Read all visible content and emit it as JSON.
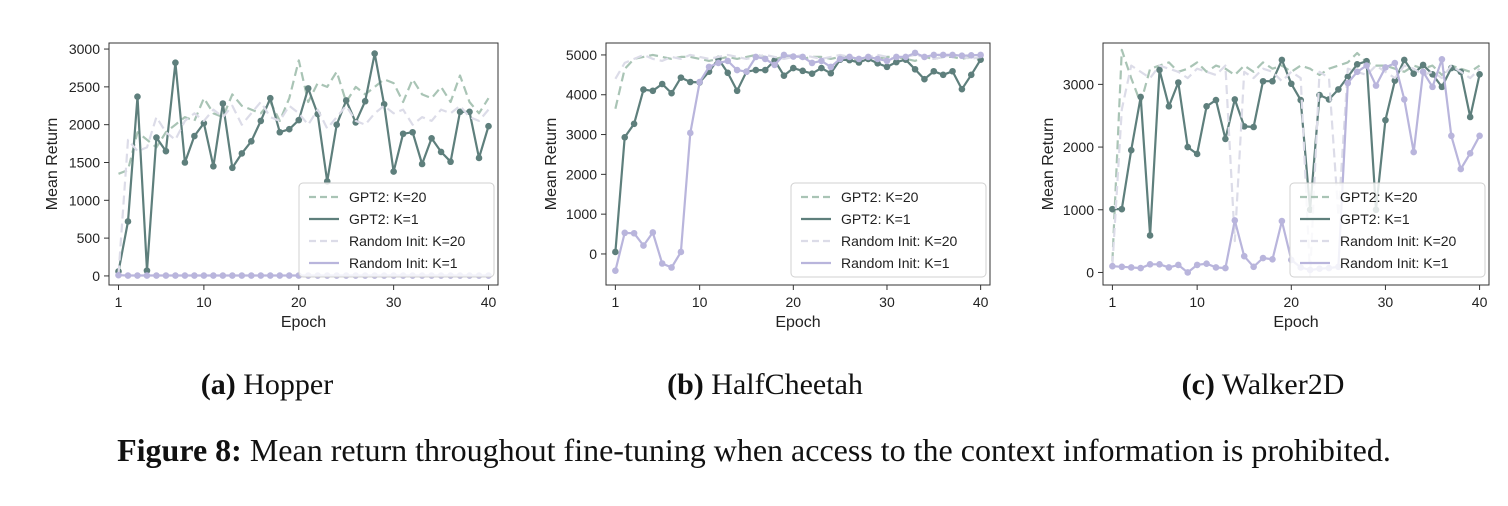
{
  "figure": {
    "label": "Figure 8:",
    "caption": "Mean return throughout fine-tuning when access to the context information is prohibited."
  },
  "colors": {
    "gpt2_k20": "#a9c4b5",
    "gpt2_k1": "#5e7f7c",
    "rand_k20": "#dcdce8",
    "rand_k1": "#b9b5dc"
  },
  "chart_data": [
    {
      "type": "line",
      "subfigure_label": "(a)",
      "subfigure_title": "Hopper",
      "xlabel": "Epoch",
      "ylabel": "Mean Return",
      "xlim": [
        0,
        41
      ],
      "ylim": [
        -120,
        3080
      ],
      "xticks": [
        1,
        10,
        20,
        30,
        40
      ],
      "yticks": [
        0,
        500,
        1000,
        1500,
        2000,
        2500,
        3000
      ],
      "legend_position": "lower-right",
      "x": [
        1,
        2,
        3,
        4,
        5,
        6,
        7,
        8,
        9,
        10,
        11,
        12,
        13,
        14,
        15,
        16,
        17,
        18,
        19,
        20,
        21,
        22,
        23,
        24,
        25,
        26,
        27,
        28,
        29,
        30,
        31,
        32,
        33,
        34,
        35,
        36,
        37,
        38,
        39,
        40
      ],
      "series": [
        {
          "name": "GPT2: K=20",
          "style": "dashed",
          "markers": false,
          "values": [
            1350,
            1400,
            1900,
            1800,
            1700,
            1900,
            2000,
            2100,
            2050,
            2350,
            2150,
            2100,
            2400,
            2250,
            2200,
            2150,
            2300,
            2050,
            2350,
            2850,
            2300,
            2550,
            2500,
            2700,
            2300,
            2500,
            2400,
            2500,
            2600,
            2550,
            2300,
            2600,
            2400,
            2350,
            2500,
            2300,
            2650,
            2300,
            2150,
            2350
          ]
        },
        {
          "name": "GPT2: K=1",
          "style": "solid",
          "markers": true,
          "values": [
            60,
            720,
            2370,
            70,
            1830,
            1650,
            2820,
            1500,
            1850,
            2020,
            1450,
            2280,
            1430,
            1620,
            1780,
            2050,
            2350,
            1900,
            1940,
            2060,
            2480,
            2140,
            1250,
            2000,
            2320,
            2030,
            2310,
            2940,
            2270,
            1380,
            1880,
            1900,
            1480,
            1820,
            1640,
            1510,
            2170,
            2170,
            1560,
            1980
          ]
        },
        {
          "name": "Random Init: K=20",
          "style": "dashed",
          "markers": false,
          "values": [
            20,
            1800,
            1650,
            1700,
            2100,
            1900,
            1800,
            2050,
            2150,
            2050,
            2200,
            2100,
            2250,
            2000,
            2150,
            2300,
            2100,
            2050,
            2250,
            2150,
            2000,
            2200,
            1950,
            2100,
            2250,
            2050,
            2000,
            2150,
            2250,
            2150,
            2200,
            2000,
            2100,
            2050,
            2200,
            2150,
            2250,
            2100,
            2050,
            2200
          ]
        },
        {
          "name": "Random Init: K=1",
          "style": "solid",
          "markers": true,
          "values": [
            10,
            5,
            5,
            5,
            5,
            5,
            5,
            5,
            5,
            5,
            5,
            5,
            5,
            5,
            5,
            5,
            5,
            5,
            5,
            5,
            5,
            5,
            5,
            5,
            5,
            5,
            5,
            5,
            5,
            5,
            5,
            5,
            5,
            5,
            5,
            5,
            5,
            5,
            5,
            5
          ]
        }
      ]
    },
    {
      "type": "line",
      "subfigure_label": "(b)",
      "subfigure_title": "HalfCheetah",
      "xlabel": "Epoch",
      "ylabel": "Mean Return",
      "xlim": [
        0,
        41
      ],
      "ylim": [
        -780,
        5300
      ],
      "xticks": [
        1,
        10,
        20,
        30,
        40
      ],
      "yticks": [
        0,
        1000,
        2000,
        3000,
        4000,
        5000
      ],
      "legend_position": "lower-right",
      "x": [
        1,
        2,
        3,
        4,
        5,
        6,
        7,
        8,
        9,
        10,
        11,
        12,
        13,
        14,
        15,
        16,
        17,
        18,
        19,
        20,
        21,
        22,
        23,
        24,
        25,
        26,
        27,
        28,
        29,
        30,
        31,
        32,
        33,
        34,
        35,
        36,
        37,
        38,
        39,
        40
      ],
      "series": [
        {
          "name": "GPT2: K=20",
          "style": "dashed",
          "markers": false,
          "values": [
            3650,
            4650,
            4900,
            4950,
            5000,
            4950,
            4900,
            4950,
            4950,
            4900,
            4850,
            4900,
            4950,
            4900,
            4950,
            5000,
            4950,
            4900,
            4950,
            5000,
            4900,
            4950,
            4950,
            4900,
            4950,
            4950,
            4850,
            4950,
            4900,
            4950,
            4950,
            4900,
            4850,
            4950,
            4900,
            4950,
            4950,
            4900,
            4950,
            4900
          ]
        },
        {
          "name": "GPT2: K=1",
          "style": "solid",
          "markers": true,
          "values": [
            50,
            2930,
            3270,
            4130,
            4100,
            4270,
            4040,
            4430,
            4320,
            4310,
            4580,
            4900,
            4550,
            4100,
            4580,
            4620,
            4620,
            4860,
            4480,
            4670,
            4600,
            4530,
            4670,
            4540,
            4880,
            4870,
            4810,
            4900,
            4790,
            4700,
            4820,
            4880,
            4640,
            4390,
            4590,
            4500,
            4590,
            4140,
            4500,
            4880
          ]
        },
        {
          "name": "Random Init: K=20",
          "style": "dashed",
          "markers": false,
          "values": [
            4400,
            4800,
            4900,
            5000,
            4900,
            4850,
            4950,
            4900,
            5000,
            4950,
            4900,
            4950,
            5000,
            4950,
            4900,
            4950,
            5000,
            4950,
            4900,
            4950,
            5000,
            4950,
            4900,
            4950,
            5000,
            4950,
            4900,
            4950,
            5000,
            4950,
            4900,
            4950,
            5000,
            4950,
            4900,
            4950,
            5000,
            4950,
            4900,
            4950
          ]
        },
        {
          "name": "Random Init: K=1",
          "style": "solid",
          "markers": true,
          "values": [
            -420,
            530,
            520,
            210,
            540,
            -240,
            -340,
            50,
            3040,
            4320,
            4700,
            4800,
            4850,
            4620,
            4580,
            4950,
            4900,
            4750,
            5000,
            4960,
            4950,
            4800,
            4850,
            4700,
            4900,
            4950,
            4900,
            4950,
            4900,
            4850,
            4950,
            4950,
            5050,
            4950,
            5000,
            5000,
            5000,
            4980,
            4990,
            5000
          ]
        }
      ]
    },
    {
      "type": "line",
      "subfigure_label": "(c)",
      "subfigure_title": "Walker2D",
      "xlabel": "Epoch",
      "ylabel": "Mean Return",
      "xlim": [
        0,
        41
      ],
      "ylim": [
        -200,
        3660
      ],
      "xticks": [
        1,
        10,
        20,
        30,
        40
      ],
      "yticks": [
        0,
        1000,
        2000,
        3000
      ],
      "legend_position": "lower-right",
      "x": [
        1,
        2,
        3,
        4,
        5,
        6,
        7,
        8,
        9,
        10,
        11,
        12,
        13,
        14,
        15,
        16,
        17,
        18,
        19,
        20,
        21,
        22,
        23,
        24,
        25,
        26,
        27,
        28,
        29,
        30,
        31,
        32,
        33,
        34,
        35,
        36,
        37,
        38,
        39,
        40
      ],
      "series": [
        {
          "name": "GPT2: K=20",
          "style": "dashed",
          "markers": false,
          "values": [
            180,
            3550,
            3100,
            2700,
            3250,
            3300,
            3350,
            3200,
            3250,
            3350,
            3200,
            3300,
            3250,
            3150,
            3300,
            3200,
            3350,
            3250,
            3300,
            3200,
            3300,
            3250,
            3150,
            3250,
            3300,
            3350,
            3500,
            3350,
            3300,
            3300,
            3250,
            3200,
            3300,
            3250,
            3300,
            3150,
            3300,
            3250,
            3200,
            3300
          ]
        },
        {
          "name": "GPT2: K=1",
          "style": "solid",
          "markers": true,
          "values": [
            1010,
            1010,
            1950,
            2800,
            590,
            3230,
            2650,
            3030,
            2000,
            1890,
            2650,
            2750,
            2130,
            2760,
            2330,
            2320,
            3050,
            3050,
            3390,
            3010,
            2750,
            1000,
            2830,
            2760,
            2920,
            3120,
            3320,
            3370,
            1000,
            2430,
            3060,
            3390,
            3170,
            3310,
            3160,
            2960,
            3260,
            3200,
            2480,
            3160
          ]
        },
        {
          "name": "Random Init: K=20",
          "style": "dashed",
          "markers": false,
          "values": [
            120,
            2600,
            3300,
            3200,
            3100,
            3300,
            3250,
            3200,
            3100,
            3250,
            3200,
            3150,
            3300,
            500,
            3200,
            3100,
            3250,
            3200,
            3050,
            3200,
            3100,
            -50,
            3200,
            3100,
            900,
            3250,
            3200,
            3150,
            3300,
            3200,
            3100,
            3300,
            3250,
            3150,
            3200,
            3100,
            3300,
            3200,
            3100,
            3250
          ]
        },
        {
          "name": "Random Init: K=1",
          "style": "solid",
          "markers": true,
          "values": [
            100,
            90,
            80,
            70,
            130,
            130,
            80,
            120,
            0,
            120,
            140,
            80,
            70,
            830,
            260,
            90,
            230,
            210,
            820,
            200,
            80,
            40,
            60,
            70,
            90,
            3020,
            3200,
            3300,
            2980,
            3270,
            3340,
            2760,
            1920,
            3200,
            2960,
            3400,
            2180,
            1650,
            1900,
            2180
          ]
        }
      ]
    }
  ]
}
